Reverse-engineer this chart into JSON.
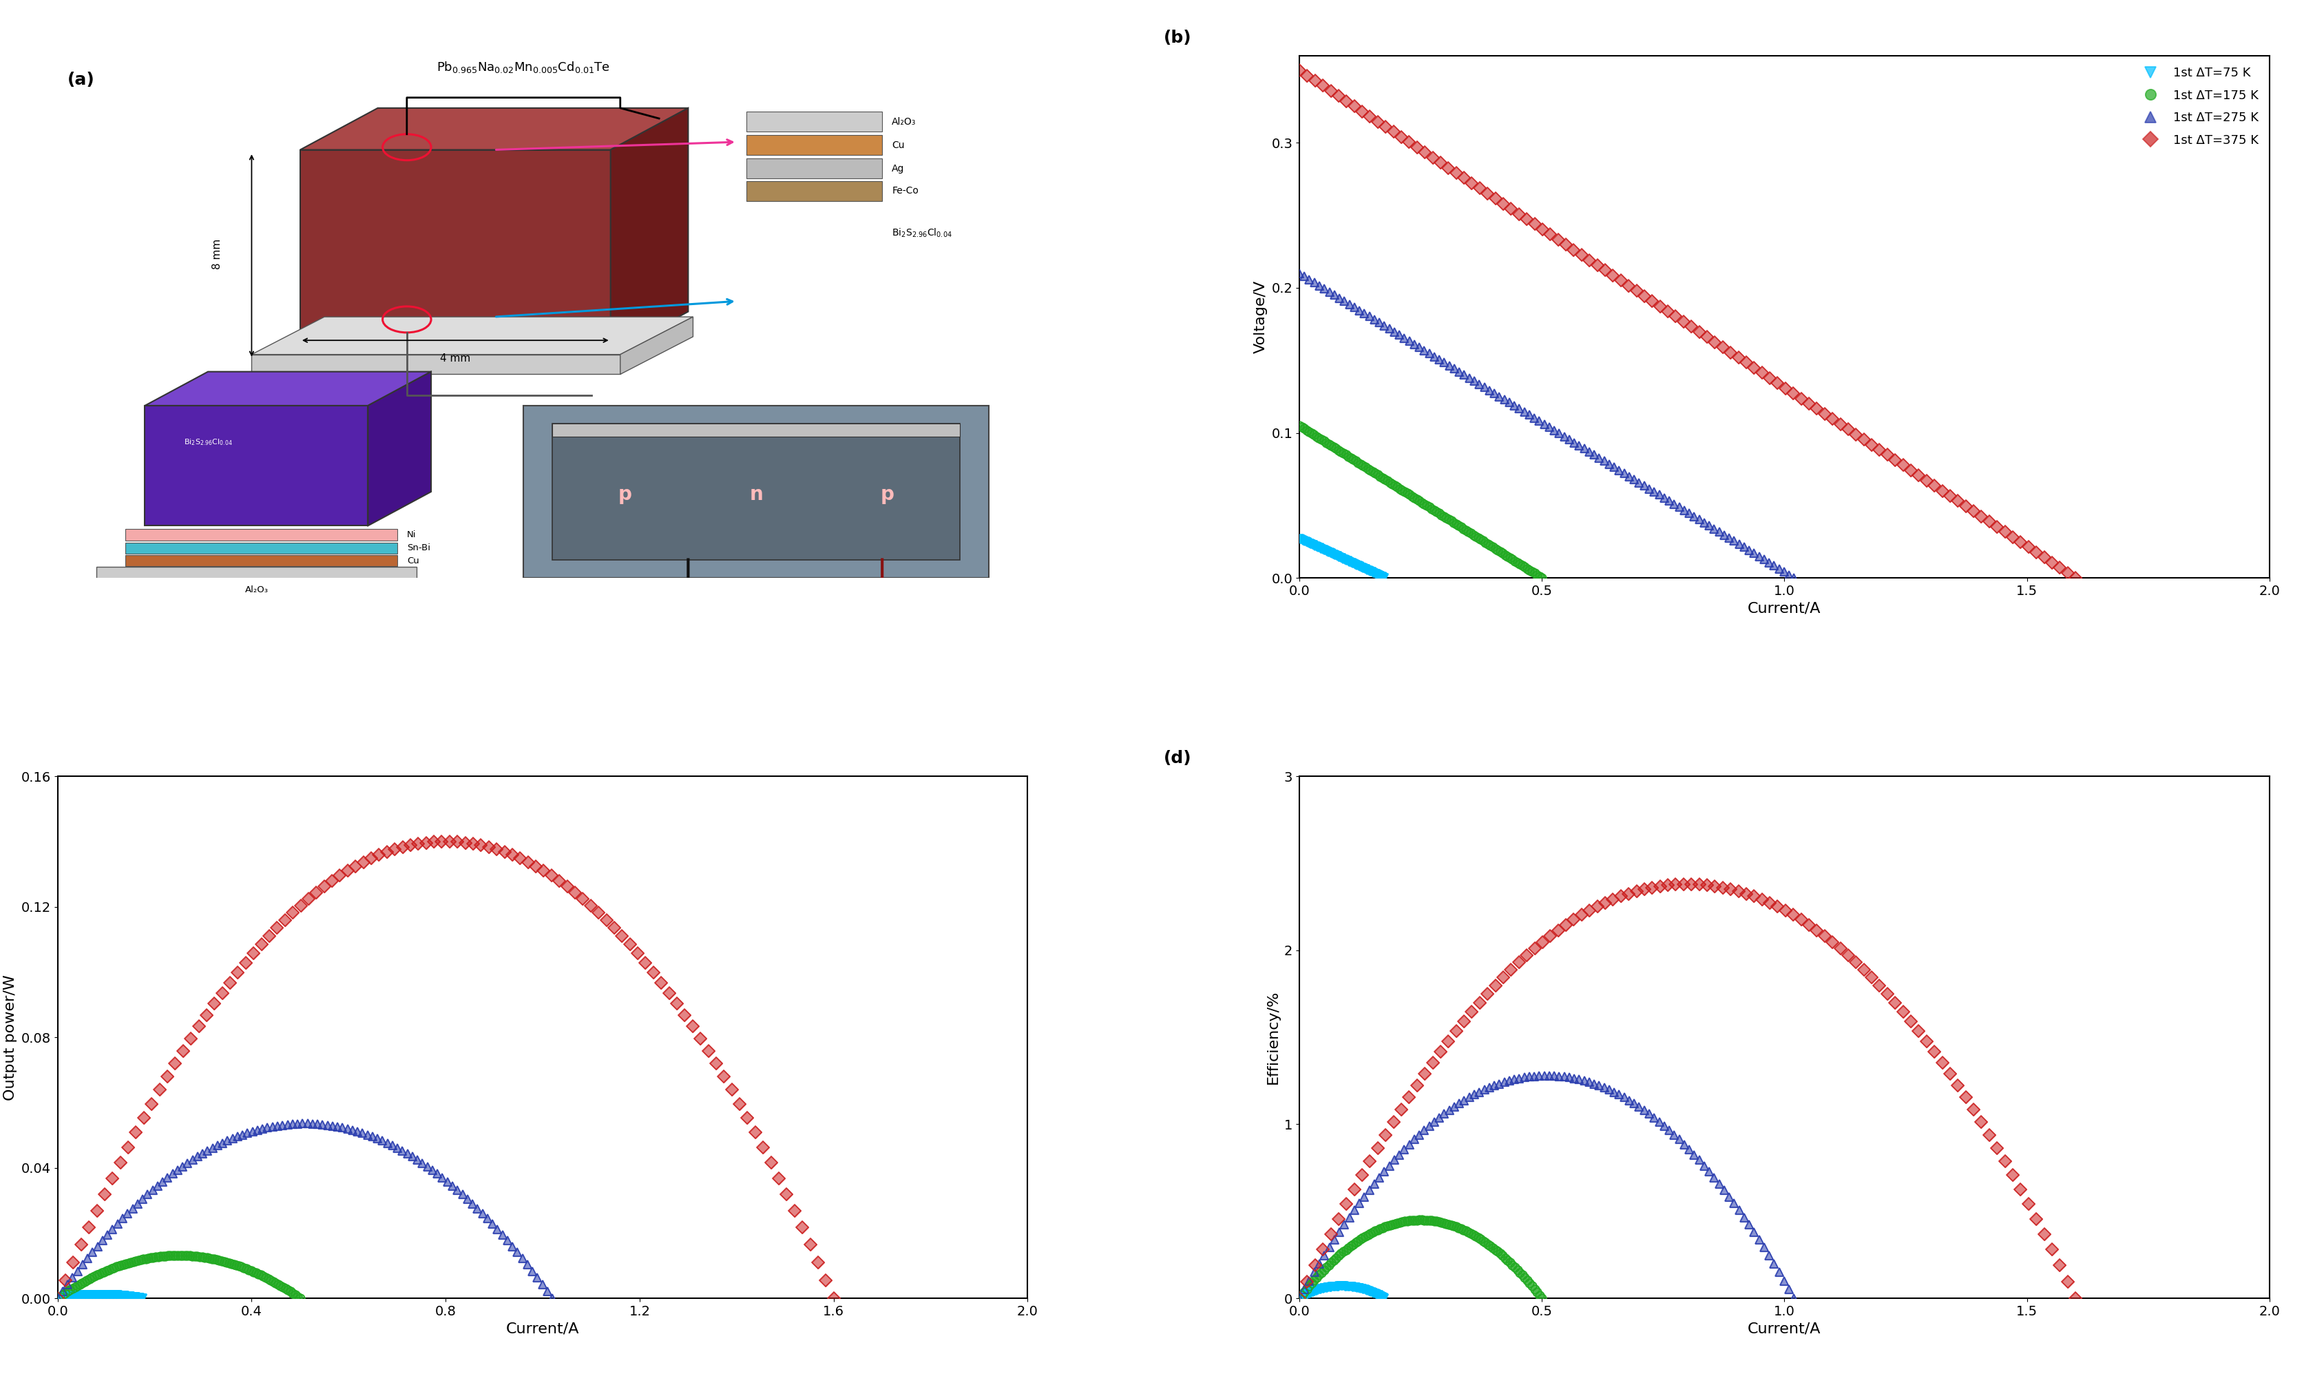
{
  "colors": [
    "#00BFFF",
    "#22AA22",
    "#2B3EAF",
    "#CC2222"
  ],
  "markers": [
    "v",
    "o",
    "^",
    "D"
  ],
  "Voc_list": [
    0.027,
    0.105,
    0.21,
    0.35
  ],
  "Isc_list": [
    0.175,
    0.5,
    1.02,
    1.6
  ],
  "legend_labels": [
    "1st ΔT=75 K",
    "1st ΔT=175 K",
    "1st ΔT=275 K",
    "1st ΔT=375 K"
  ],
  "panel_b": {
    "xlabel": "Current/A",
    "ylabel": "Voltage/V",
    "xlim": [
      0,
      2.0
    ],
    "ylim": [
      0,
      0.36
    ],
    "yticks": [
      0.0,
      0.1,
      0.2,
      0.3
    ],
    "xticks": [
      0.0,
      0.5,
      1.0,
      1.5,
      2.0
    ]
  },
  "panel_c": {
    "xlabel": "Current/A",
    "ylabel": "Output power/W",
    "xlim": [
      0,
      2.0
    ],
    "ylim": [
      0,
      0.16
    ],
    "yticks": [
      0.0,
      0.04,
      0.08,
      0.12,
      0.16
    ],
    "xticks": [
      0.0,
      0.4,
      0.8,
      1.2,
      1.6,
      2.0
    ]
  },
  "panel_d": {
    "xlabel": "Current/A",
    "ylabel": "Efficiency/%",
    "xlim": [
      0,
      2.0
    ],
    "ylim": [
      0,
      3.0
    ],
    "yticks": [
      0,
      1,
      2,
      3
    ],
    "xticks": [
      0.0,
      0.5,
      1.0,
      1.5,
      2.0
    ],
    "peak_effs_pct": [
      0.07,
      0.45,
      1.28,
      2.38
    ]
  },
  "diagram": {
    "title": "Pb$_{0.965}$Na$_{0.02}$Mn$_{0.005}$Cd$_{0.01}$Te",
    "main_block_color": "#8B3030",
    "main_block_top_color": "#AA4848",
    "main_block_right_color": "#6B1A1A",
    "n_block_color": "#5522AA",
    "n_block_top_color": "#7744CC",
    "n_block_right_color": "#441188",
    "base_color": "#BBBBBB",
    "layer_stack_right": [
      {
        "label": "Al₂O₃",
        "color": "#CCCCCC"
      },
      {
        "label": "Cu",
        "color": "#CC8844"
      },
      {
        "label": "Ag",
        "color": "#BBBBBB"
      },
      {
        "label": "Fe-Co",
        "color": "#AA8855"
      }
    ],
    "n_layers": [
      {
        "label": "Ni",
        "color": "#F4AAAA"
      },
      {
        "label": "Sn-Bi",
        "color": "#44BBCC"
      },
      {
        "label": "Cu",
        "color": "#BB6633"
      }
    ]
  }
}
